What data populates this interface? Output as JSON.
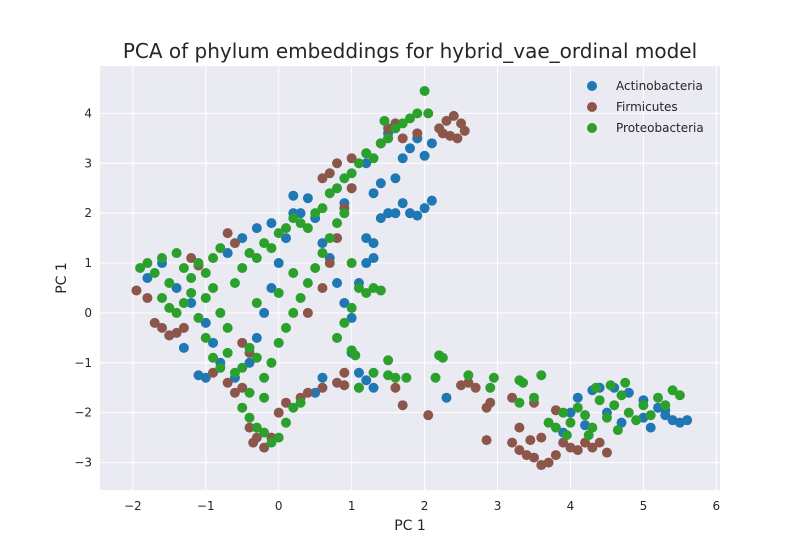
{
  "chart_data": {
    "type": "scatter",
    "title": "PCA of phylum embeddings for hybrid_vae_ordinal model",
    "xlabel": "PC 1",
    "ylabel": "PC 1",
    "xlim": [
      -2.45,
      6.05
    ],
    "ylim": [
      -3.55,
      4.95
    ],
    "x_ticks": [
      -2,
      -1,
      0,
      1,
      2,
      3,
      4,
      5,
      6
    ],
    "y_ticks": [
      -3,
      -2,
      -1,
      0,
      1,
      2,
      3,
      4
    ],
    "x_tick_labels": [
      "−2",
      "−1",
      "0",
      "1",
      "2",
      "3",
      "4",
      "5",
      "6"
    ],
    "y_tick_labels": [
      "−3",
      "−2",
      "−1",
      "0",
      "1",
      "2",
      "3",
      "4"
    ],
    "grid": true,
    "legend_position": "top-right",
    "series": [
      {
        "name": "Actinobacteria",
        "color": "#1f77b4",
        "points": [
          [
            -1.8,
            0.7
          ],
          [
            -1.6,
            1.0
          ],
          [
            -1.4,
            0.5
          ],
          [
            -1.2,
            0.2
          ],
          [
            -1.0,
            -0.2
          ],
          [
            -0.9,
            -0.6
          ],
          [
            -0.8,
            -1.0
          ],
          [
            -0.6,
            -1.3
          ],
          [
            -0.4,
            -1.0
          ],
          [
            -0.3,
            -0.5
          ],
          [
            -0.2,
            0.0
          ],
          [
            -0.1,
            0.5
          ],
          [
            0.0,
            1.0
          ],
          [
            0.1,
            1.5
          ],
          [
            0.2,
            2.0
          ],
          [
            0.3,
            2.0
          ],
          [
            0.2,
            2.35
          ],
          [
            0.4,
            2.3
          ],
          [
            0.5,
            1.9
          ],
          [
            0.6,
            1.4
          ],
          [
            0.7,
            1.1
          ],
          [
            0.8,
            0.6
          ],
          [
            0.9,
            0.2
          ],
          [
            1.0,
            -0.1
          ],
          [
            1.1,
            0.6
          ],
          [
            1.2,
            1.0
          ],
          [
            1.3,
            1.4
          ],
          [
            1.2,
            1.5
          ],
          [
            1.3,
            1.1
          ],
          [
            1.4,
            1.9
          ],
          [
            1.5,
            2.0
          ],
          [
            1.6,
            2.0
          ],
          [
            1.7,
            2.2
          ],
          [
            1.8,
            2.0
          ],
          [
            1.9,
            1.95
          ],
          [
            2.0,
            2.1
          ],
          [
            2.1,
            2.25
          ],
          [
            1.3,
            2.4
          ],
          [
            1.4,
            2.6
          ],
          [
            1.6,
            2.7
          ],
          [
            1.7,
            3.1
          ],
          [
            1.8,
            3.3
          ],
          [
            1.9,
            3.5
          ],
          [
            2.0,
            3.15
          ],
          [
            2.1,
            3.4
          ],
          [
            1.5,
            3.6
          ],
          [
            1.2,
            3.0
          ],
          [
            1.0,
            2.5
          ],
          [
            0.9,
            2.2
          ],
          [
            -0.5,
            1.5
          ],
          [
            -0.7,
            1.2
          ],
          [
            -0.3,
            1.7
          ],
          [
            -0.1,
            1.8
          ],
          [
            1.0,
            -0.8
          ],
          [
            1.1,
            -1.2
          ],
          [
            1.2,
            -1.35
          ],
          [
            1.3,
            -1.5
          ],
          [
            0.6,
            -1.3
          ],
          [
            0.5,
            -1.6
          ],
          [
            -1.0,
            -1.3
          ],
          [
            -1.1,
            -1.25
          ],
          [
            -1.3,
            -0.7
          ],
          [
            -1.5,
            -0.45
          ],
          [
            2.3,
            -1.7
          ],
          [
            4.0,
            -2.0
          ],
          [
            4.1,
            -1.7
          ],
          [
            4.3,
            -1.55
          ],
          [
            4.4,
            -1.5
          ],
          [
            4.6,
            -1.5
          ],
          [
            4.8,
            -1.6
          ],
          [
            5.0,
            -1.75
          ],
          [
            5.2,
            -1.9
          ],
          [
            5.3,
            -2.05
          ],
          [
            5.4,
            -2.15
          ],
          [
            5.5,
            -2.2
          ],
          [
            5.6,
            -2.15
          ],
          [
            5.0,
            -2.1
          ],
          [
            4.5,
            -2.0
          ],
          [
            4.2,
            -2.25
          ],
          [
            3.9,
            -2.4
          ],
          [
            5.1,
            -2.3
          ],
          [
            5.3,
            -1.95
          ],
          [
            4.7,
            -2.2
          ]
        ]
      },
      {
        "name": "Firmicutes",
        "color": "#8c564b",
        "points": [
          [
            -1.95,
            0.45
          ],
          [
            -1.8,
            0.3
          ],
          [
            -1.7,
            -0.2
          ],
          [
            -1.6,
            -0.3
          ],
          [
            -1.5,
            -0.45
          ],
          [
            -1.4,
            -0.4
          ],
          [
            -1.3,
            -0.3
          ],
          [
            -1.2,
            1.1
          ],
          [
            -1.1,
            0.95
          ],
          [
            -0.7,
            1.6
          ],
          [
            -0.6,
            1.4
          ],
          [
            -0.5,
            -0.6
          ],
          [
            -0.4,
            -0.8
          ],
          [
            -0.9,
            -1.2
          ],
          [
            -0.7,
            -1.4
          ],
          [
            -0.6,
            -1.6
          ],
          [
            -0.5,
            -1.5
          ],
          [
            -0.4,
            -2.3
          ],
          [
            -0.35,
            -2.6
          ],
          [
            -0.3,
            -2.5
          ],
          [
            -0.2,
            -2.7
          ],
          [
            -0.1,
            -2.5
          ],
          [
            0.0,
            -2.0
          ],
          [
            0.1,
            -1.8
          ],
          [
            0.3,
            -1.7
          ],
          [
            0.4,
            -1.6
          ],
          [
            0.6,
            -1.5
          ],
          [
            0.8,
            -1.4
          ],
          [
            0.9,
            -1.2
          ],
          [
            0.4,
            0.0
          ],
          [
            0.6,
            0.5
          ],
          [
            0.7,
            1.0
          ],
          [
            0.8,
            1.5
          ],
          [
            0.9,
            2.1
          ],
          [
            1.0,
            2.5
          ],
          [
            0.6,
            2.7
          ],
          [
            0.7,
            2.8
          ],
          [
            0.8,
            3.0
          ],
          [
            1.0,
            3.1
          ],
          [
            1.2,
            3.2
          ],
          [
            1.4,
            3.4
          ],
          [
            1.5,
            3.7
          ],
          [
            1.6,
            3.8
          ],
          [
            1.7,
            3.5
          ],
          [
            1.9,
            3.6
          ],
          [
            2.2,
            3.7
          ],
          [
            2.3,
            3.85
          ],
          [
            2.4,
            3.95
          ],
          [
            2.5,
            3.8
          ],
          [
            2.55,
            3.65
          ],
          [
            2.35,
            3.55
          ],
          [
            2.25,
            3.6
          ],
          [
            2.45,
            3.5
          ],
          [
            1.7,
            -1.85
          ],
          [
            1.6,
            -1.5
          ],
          [
            2.05,
            -2.05
          ],
          [
            2.5,
            -1.45
          ],
          [
            2.6,
            -1.4
          ],
          [
            2.7,
            -1.5
          ],
          [
            2.9,
            -1.8
          ],
          [
            2.85,
            -1.9
          ],
          [
            2.85,
            -2.55
          ],
          [
            3.3,
            -2.3
          ],
          [
            3.2,
            -2.6
          ],
          [
            3.3,
            -2.75
          ],
          [
            3.4,
            -2.85
          ],
          [
            3.5,
            -2.9
          ],
          [
            3.6,
            -3.05
          ],
          [
            3.7,
            -3.0
          ],
          [
            3.8,
            -2.85
          ],
          [
            3.9,
            -2.6
          ],
          [
            4.0,
            -2.7
          ],
          [
            4.1,
            -2.75
          ],
          [
            4.2,
            -2.6
          ],
          [
            4.3,
            -2.7
          ],
          [
            4.4,
            -2.6
          ],
          [
            4.5,
            -2.8
          ],
          [
            3.5,
            -1.8
          ],
          [
            3.8,
            -1.95
          ],
          [
            3.2,
            -1.7
          ],
          [
            1.1,
            -1.5
          ],
          [
            0.9,
            -1.45
          ],
          [
            3.6,
            -2.5
          ],
          [
            3.45,
            -2.55
          ]
        ]
      },
      {
        "name": "Proteobacteria",
        "color": "#2ca02c",
        "points": [
          [
            -1.9,
            0.9
          ],
          [
            -1.8,
            1.0
          ],
          [
            -1.7,
            0.8
          ],
          [
            -1.6,
            1.1
          ],
          [
            -1.5,
            0.6
          ],
          [
            -1.4,
            1.2
          ],
          [
            -1.3,
            0.9
          ],
          [
            -1.2,
            0.7
          ],
          [
            -1.1,
            1.0
          ],
          [
            -1.0,
            0.8
          ],
          [
            -0.9,
            1.1
          ],
          [
            -0.8,
            1.3
          ],
          [
            -1.6,
            0.3
          ],
          [
            -1.5,
            0.1
          ],
          [
            -1.4,
            0.0
          ],
          [
            -1.3,
            0.2
          ],
          [
            -1.2,
            0.4
          ],
          [
            -1.1,
            -0.1
          ],
          [
            -1.0,
            0.3
          ],
          [
            -0.9,
            0.5
          ],
          [
            -0.8,
            0.0
          ],
          [
            -0.7,
            -0.3
          ],
          [
            -0.6,
            0.6
          ],
          [
            -0.5,
            0.9
          ],
          [
            -0.4,
            1.2
          ],
          [
            -0.3,
            1.1
          ],
          [
            -0.2,
            1.4
          ],
          [
            -0.1,
            1.3
          ],
          [
            0.0,
            1.6
          ],
          [
            0.1,
            1.7
          ],
          [
            0.2,
            1.9
          ],
          [
            0.3,
            1.8
          ],
          [
            0.4,
            1.7
          ],
          [
            0.5,
            2.0
          ],
          [
            0.6,
            2.1
          ],
          [
            0.7,
            2.4
          ],
          [
            0.8,
            2.5
          ],
          [
            0.9,
            2.7
          ],
          [
            1.0,
            2.8
          ],
          [
            1.1,
            3.0
          ],
          [
            1.2,
            3.2
          ],
          [
            1.3,
            3.1
          ],
          [
            1.4,
            3.4
          ],
          [
            1.5,
            3.5
          ],
          [
            1.6,
            3.7
          ],
          [
            1.7,
            3.8
          ],
          [
            1.8,
            3.9
          ],
          [
            1.9,
            4.0
          ],
          [
            2.0,
            4.45
          ],
          [
            2.05,
            4.0
          ],
          [
            1.45,
            3.85
          ],
          [
            -1.0,
            -0.5
          ],
          [
            -0.9,
            -0.9
          ],
          [
            -0.8,
            -1.1
          ],
          [
            -0.7,
            -0.8
          ],
          [
            -0.6,
            -1.2
          ],
          [
            -0.5,
            -1.1
          ],
          [
            -0.4,
            -0.7
          ],
          [
            -0.3,
            -0.9
          ],
          [
            -0.2,
            -1.3
          ],
          [
            -0.1,
            -1.0
          ],
          [
            0.0,
            -0.6
          ],
          [
            0.1,
            -0.3
          ],
          [
            0.2,
            0.0
          ],
          [
            0.3,
            0.3
          ],
          [
            0.4,
            0.6
          ],
          [
            0.5,
            0.9
          ],
          [
            0.6,
            1.2
          ],
          [
            0.7,
            1.5
          ],
          [
            0.8,
            1.8
          ],
          [
            0.9,
            2.0
          ],
          [
            1.0,
            1.0
          ],
          [
            1.1,
            0.5
          ],
          [
            1.0,
            0.1
          ],
          [
            0.9,
            -0.2
          ],
          [
            0.8,
            -0.5
          ],
          [
            -0.5,
            -1.9
          ],
          [
            -0.4,
            -2.1
          ],
          [
            -0.3,
            -2.3
          ],
          [
            -0.2,
            -2.4
          ],
          [
            -0.1,
            -2.6
          ],
          [
            0.0,
            -2.5
          ],
          [
            0.1,
            -2.2
          ],
          [
            0.2,
            -1.9
          ],
          [
            0.3,
            -1.8
          ],
          [
            -0.2,
            -1.7
          ],
          [
            -0.4,
            -1.6
          ],
          [
            -0.3,
            0.2
          ],
          [
            0.0,
            0.4
          ],
          [
            0.2,
            0.8
          ],
          [
            1.2,
            0.4
          ],
          [
            1.3,
            0.5
          ],
          [
            1.4,
            0.45
          ],
          [
            1.0,
            -0.75
          ],
          [
            1.05,
            -0.85
          ],
          [
            1.5,
            -0.95
          ],
          [
            1.3,
            -1.2
          ],
          [
            1.5,
            -1.25
          ],
          [
            1.6,
            -1.3
          ],
          [
            1.75,
            -1.3
          ],
          [
            1.1,
            -1.5
          ],
          [
            2.15,
            -1.3
          ],
          [
            2.2,
            -0.85
          ],
          [
            2.25,
            -0.9
          ],
          [
            2.6,
            -1.25
          ],
          [
            2.9,
            -1.5
          ],
          [
            2.95,
            -1.3
          ],
          [
            3.3,
            -1.35
          ],
          [
            3.35,
            -1.4
          ],
          [
            3.3,
            -1.8
          ],
          [
            3.5,
            -1.7
          ],
          [
            3.6,
            -1.25
          ],
          [
            3.7,
            -2.2
          ],
          [
            3.8,
            -2.3
          ],
          [
            3.9,
            -2.0
          ],
          [
            4.0,
            -2.2
          ],
          [
            4.1,
            -1.9
          ],
          [
            4.2,
            -2.05
          ],
          [
            4.3,
            -2.3
          ],
          [
            4.4,
            -1.75
          ],
          [
            4.5,
            -2.1
          ],
          [
            4.6,
            -1.85
          ],
          [
            4.7,
            -1.65
          ],
          [
            4.8,
            -2.0
          ],
          [
            4.9,
            -2.15
          ],
          [
            5.0,
            -1.85
          ],
          [
            5.1,
            -2.05
          ],
          [
            5.2,
            -1.7
          ],
          [
            5.3,
            -1.85
          ],
          [
            5.4,
            -1.55
          ],
          [
            5.5,
            -1.65
          ],
          [
            4.35,
            -1.5
          ],
          [
            4.55,
            -1.45
          ],
          [
            4.75,
            -1.4
          ],
          [
            3.95,
            -2.45
          ],
          [
            4.25,
            -2.45
          ],
          [
            4.65,
            -2.35
          ]
        ]
      }
    ]
  }
}
